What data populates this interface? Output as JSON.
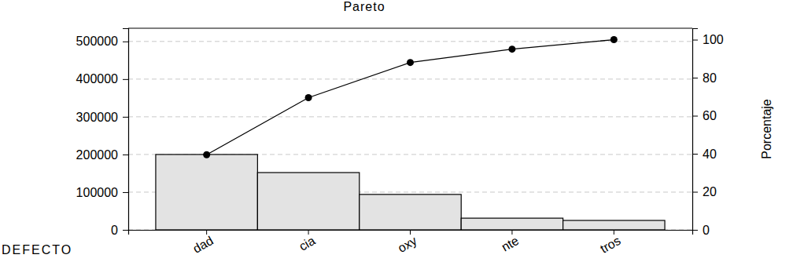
{
  "chart_data": {
    "type": "bar",
    "title": "Pareto",
    "x_label": "DEFECTO",
    "y2_label": "Porcentaje",
    "categories": [
      "dad",
      "cia",
      "oxy",
      "nte",
      "tros"
    ],
    "series": [
      {
        "type": "bar",
        "color": "#e3e3e3",
        "values": [
          200000,
          152000,
          94000,
          31000,
          25000
        ]
      },
      {
        "type": "line",
        "axis": "y2",
        "color": "#000000",
        "marker": "circle",
        "values": [
          39.5,
          69.5,
          88,
          95,
          100
        ]
      }
    ],
    "ylim": [
      0,
      535000
    ],
    "yticks": [
      0,
      100000,
      200000,
      300000,
      400000,
      500000
    ],
    "y2lim": [
      0,
      106
    ],
    "y2ticks": [
      0,
      20,
      40,
      60,
      80,
      100
    ],
    "grid": true
  }
}
